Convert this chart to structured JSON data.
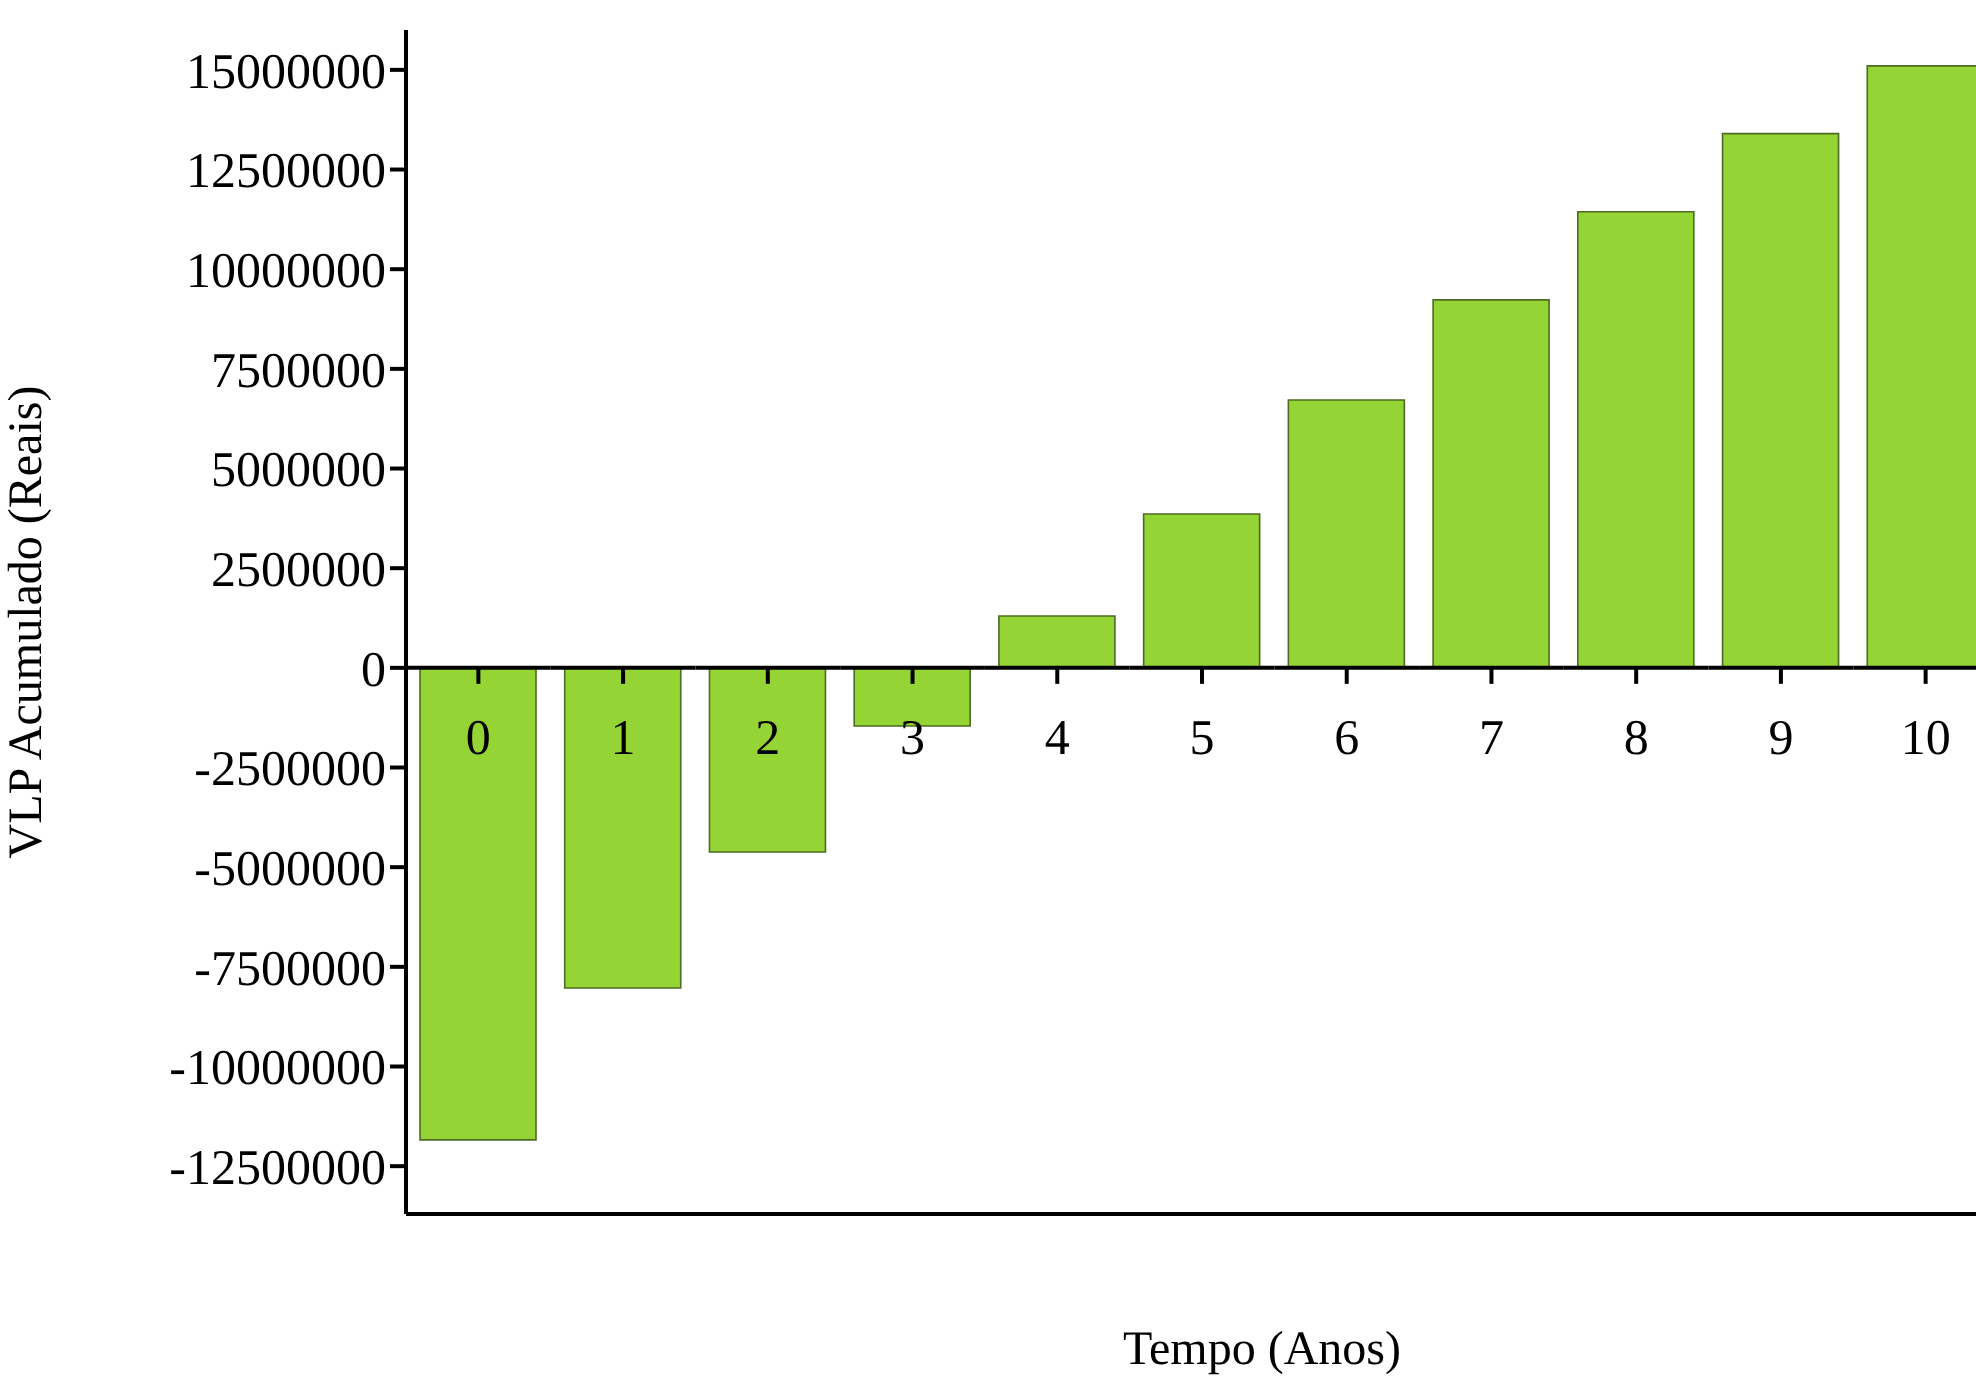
{
  "chart_data": {
    "type": "bar",
    "xlabel": "Tempo (Anos)",
    "ylabel": "VLP Acumulado (Reais)",
    "categories": [
      "0",
      "1",
      "2",
      "3",
      "4",
      "5",
      "6",
      "7",
      "8",
      "9",
      "10"
    ],
    "values": [
      -11840000,
      -8030000,
      -4620000,
      -1460000,
      1300000,
      3860000,
      6720000,
      9230000,
      11440000,
      13400000,
      15100000
    ],
    "color": "#94d535",
    "ylim": [
      -13700000,
      16000000
    ],
    "yticks": [
      -12500000,
      -10000000,
      -7500000,
      -5000000,
      -2500000,
      0,
      2500000,
      5000000,
      7500000,
      10000000,
      12500000,
      15000000
    ],
    "grid": false,
    "legend": false
  }
}
